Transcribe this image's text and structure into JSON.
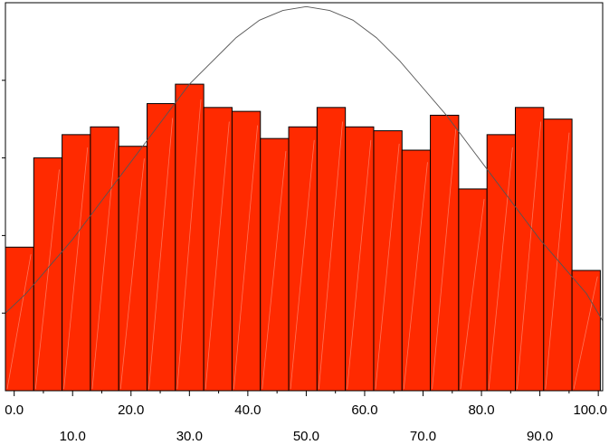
{
  "chart_data": {
    "type": "bar",
    "title": "",
    "xlabel": "",
    "ylabel": "",
    "xlim": [
      -1.5,
      100.75
    ],
    "ylim": [
      0,
      100
    ],
    "grid": false,
    "legend": "none",
    "bins": {
      "start": -1.5,
      "width": 4.85,
      "heights": [
        37,
        60,
        66,
        68,
        63,
        74,
        79,
        73,
        72,
        65,
        68,
        73,
        68,
        67,
        62,
        71,
        52,
        66,
        73,
        70,
        31
      ]
    },
    "curve": {
      "type": "normal-density",
      "mean": 50,
      "points": [
        [
          -1.5,
          20
        ],
        [
          2,
          25
        ],
        [
          6,
          32
        ],
        [
          10,
          39
        ],
        [
          14,
          47
        ],
        [
          18,
          55
        ],
        [
          22,
          63
        ],
        [
          26,
          71
        ],
        [
          30,
          79
        ],
        [
          34,
          85
        ],
        [
          38,
          91
        ],
        [
          42,
          95.5
        ],
        [
          46,
          98
        ],
        [
          50,
          99
        ],
        [
          54,
          98
        ],
        [
          58,
          95.5
        ],
        [
          62,
          91
        ],
        [
          66,
          85
        ],
        [
          70,
          78
        ],
        [
          74,
          71
        ],
        [
          78,
          63
        ],
        [
          82,
          55
        ],
        [
          86,
          47
        ],
        [
          90,
          39
        ],
        [
          94,
          32
        ],
        [
          98,
          25
        ],
        [
          100.75,
          18
        ]
      ]
    },
    "x_ticks_row1": [
      "0.0",
      "20.0",
      "40.0",
      "60.0",
      "80.0",
      "100.0"
    ],
    "x_ticks_row2": [
      "10.0",
      "30.0",
      "50.0",
      "70.0",
      "90.0"
    ],
    "x_tick_values_row1": [
      0,
      20,
      40,
      60,
      80,
      100
    ],
    "x_tick_values_row2": [
      10,
      30,
      50,
      70,
      90
    ]
  },
  "colors": {
    "bar_fill": "#ff2a00",
    "bar_stroke": "#000000",
    "curve": "#555555",
    "frame": "#000000"
  }
}
